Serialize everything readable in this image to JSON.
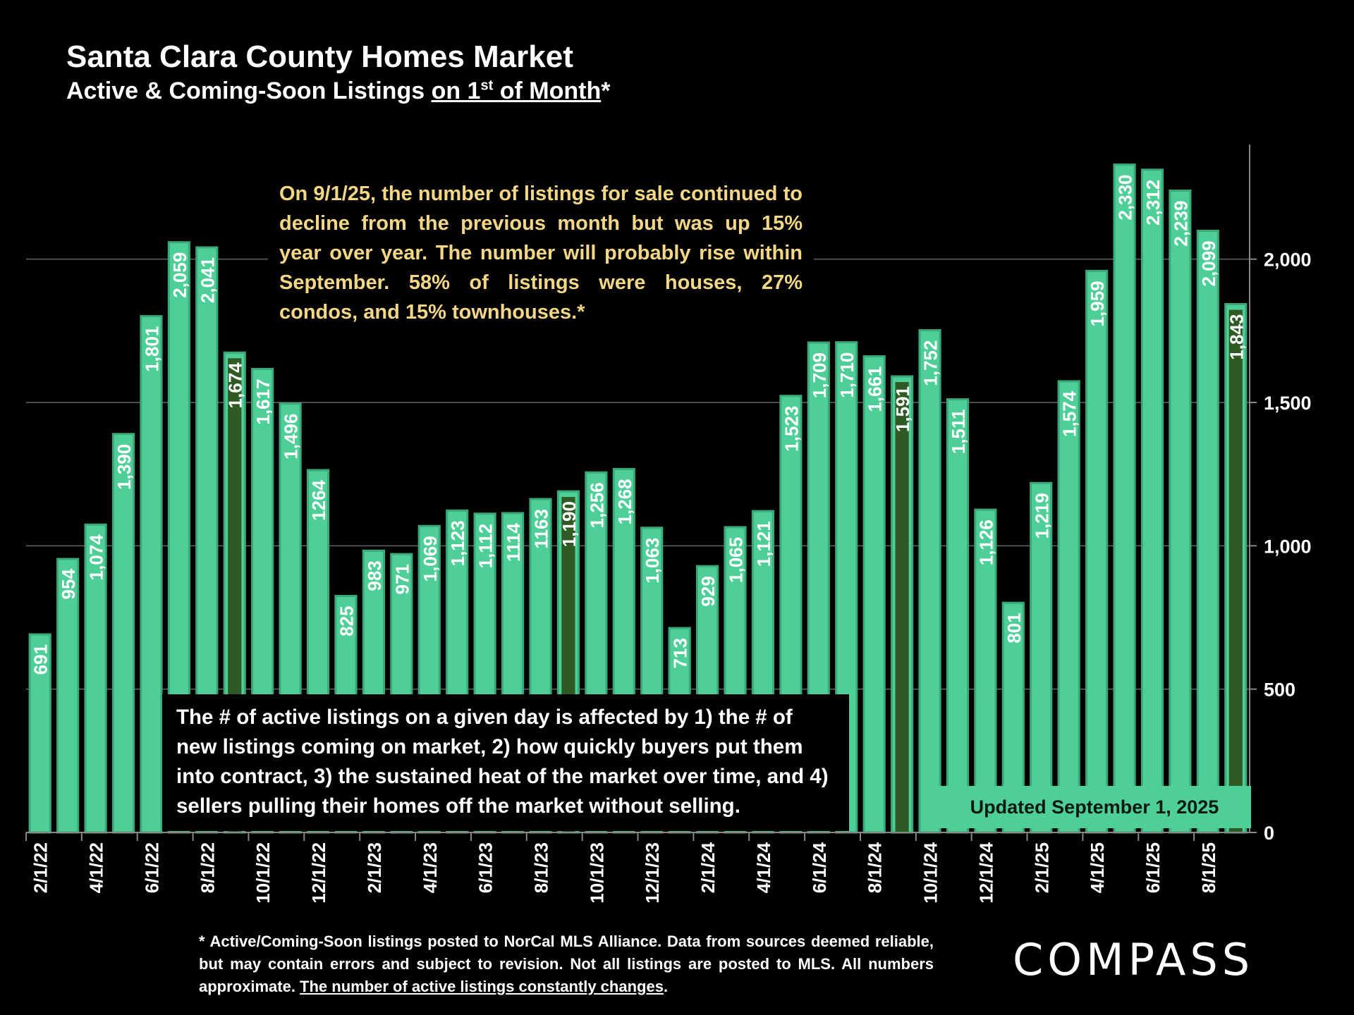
{
  "header": {
    "title": "Santa Clara County Homes Market",
    "subtitle_pre": "Active & Coming-Soon Listings ",
    "subtitle_link_a": "on 1",
    "subtitle_sup": "st",
    "subtitle_link_b": " of Month",
    "subtitle_post": "*"
  },
  "annotations": {
    "top": "On 9/1/25, the number of listings for sale continued to decline from the previous month but was up 15% year over year. The number will probably rise within September. 58% of listings were houses, 27% condos, and 15% townhouses.*",
    "bottom": "The # of active listings on a given day is affected by 1) the # of new listings coming on market, 2) how quickly buyers put them into contract, 3) the sustained heat of the market over time, and 4) sellers pulling their homes off the market without selling.",
    "updated": "Updated September 1, 2025"
  },
  "footnote": {
    "text": "* Active/Coming-Soon listings posted to NorCal MLS Alliance.  Data from sources deemed reliable, but may contain errors and subject to revision.  Not all listings are posted to MLS. All numbers approximate. ",
    "underlined": "The number of active listings constantly changes",
    "end": "."
  },
  "brand": {
    "logo": "COMPASS"
  },
  "colors": {
    "bar": "#4fcf98",
    "bar_edge": "#3aa878",
    "highlight": "#2f5a23",
    "accent_text": "#f3d785"
  },
  "chart_data": {
    "type": "bar",
    "categories": [
      "2/1/22",
      "3/1/22",
      "4/1/22",
      "5/1/22",
      "6/1/22",
      "7/1/22",
      "8/1/22",
      "9/1/22",
      "10/1/22",
      "11/1/22",
      "12/1/22",
      "1/1/23",
      "2/1/23",
      "3/1/23",
      "4/1/23",
      "5/1/23",
      "6/1/23",
      "7/1/23",
      "8/1/23",
      "9/1/23",
      "10/1/23",
      "11/1/23",
      "12/1/23",
      "1/1/24",
      "2/1/24",
      "3/1/24",
      "4/1/24",
      "5/1/24",
      "6/1/24",
      "7/1/24",
      "8/1/24",
      "9/1/24",
      "10/1/24",
      "11/1/24",
      "12/1/24",
      "1/1/25",
      "2/1/25",
      "3/1/25",
      "4/1/25",
      "5/1/25",
      "6/1/25",
      "7/1/25",
      "8/1/25",
      "9/1/25"
    ],
    "x_tick_labels": [
      "2/1/22",
      "4/1/22",
      "6/1/22",
      "8/1/22",
      "10/1/22",
      "12/1/22",
      "2/1/23",
      "4/1/23",
      "6/1/23",
      "8/1/23",
      "10/1/23",
      "12/1/23",
      "2/1/24",
      "4/1/24",
      "6/1/24",
      "8/1/24",
      "10/1/24",
      "12/1/24",
      "2/1/25",
      "4/1/25",
      "6/1/25",
      "8/1/25"
    ],
    "values": [
      691,
      954,
      1074,
      1390,
      1801,
      2059,
      2041,
      1674,
      1617,
      1496,
      1264,
      825,
      983,
      971,
      1069,
      1123,
      1112,
      1114,
      1163,
      1190,
      1256,
      1268,
      1063,
      713,
      929,
      1065,
      1121,
      1523,
      1709,
      1710,
      1661,
      1591,
      1752,
      1511,
      1126,
      801,
      1219,
      1574,
      1959,
      2330,
      2312,
      2239,
      2099,
      1843
    ],
    "value_labels": [
      "691",
      "954",
      "1,074",
      "1,390",
      "1,801",
      "2,059",
      "2,041",
      "1,674",
      "1,617",
      "1,496",
      "1264",
      "825",
      "983",
      "971",
      "1,069",
      "1,123",
      "1,112",
      "1114",
      "1163",
      "1,190",
      "1,256",
      "1,268",
      "1,063",
      "713",
      "929",
      "1,065",
      "1,121",
      "1,523",
      "1,709",
      "1,710",
      "1,661",
      "1,591",
      "1,752",
      "1,511",
      "1,126",
      "801",
      "1,219",
      "1,574",
      "1,959",
      "2,330",
      "2,312",
      "2,239",
      "2,099",
      "1,843"
    ],
    "highlighted": [
      "9/1/22",
      "9/1/23",
      "9/1/24",
      "9/1/25"
    ],
    "ylim": [
      0,
      2400
    ],
    "yticks": [
      0,
      500,
      1000,
      1500,
      2000
    ],
    "ytick_labels": [
      "0",
      "500",
      "1,000",
      "1,500",
      "2,000"
    ],
    "grid": true,
    "y_axis_side": "right"
  }
}
